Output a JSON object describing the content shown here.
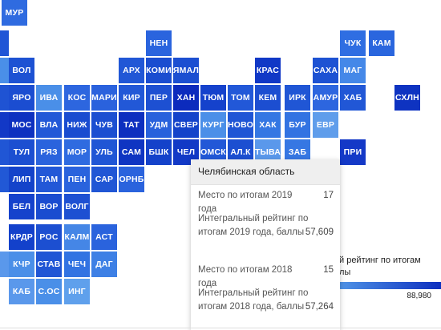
{
  "tiles": [
    {
      "label": "МУР",
      "color": "#2f6be0"
    },
    {
      "label": "",
      "color": "#1f55d6"
    },
    {
      "label": "НЕН",
      "color": "#2a64de"
    },
    {
      "label": "ЧУК",
      "color": "#2f6ee2"
    },
    {
      "label": "КАМ",
      "color": "#2a66de"
    },
    {
      "label": "",
      "color": "#4a8fe8"
    },
    {
      "label": "ВОЛ",
      "color": "#1d52d3"
    },
    {
      "label": "АРХ",
      "color": "#2157d6"
    },
    {
      "label": "КОМИ",
      "color": "#1a4dd0"
    },
    {
      "label": "ЯМАЛ",
      "color": "#1c4fd1"
    },
    {
      "label": "КРАС",
      "color": "#1138c6"
    },
    {
      "label": "САХА",
      "color": "#1d52d3"
    },
    {
      "label": "МАГ",
      "color": "#4588e8"
    },
    {
      "label": "",
      "color": "#1f53d3"
    },
    {
      "label": "ЯРО",
      "color": "#1b4dd1"
    },
    {
      "label": "ИВА",
      "color": "#4a8fe8"
    },
    {
      "label": "КОС",
      "color": "#2d66df"
    },
    {
      "label": "МАРИ",
      "color": "#2a62dd"
    },
    {
      "label": "КИР",
      "color": "#2258d7"
    },
    {
      "label": "ПЕР",
      "color": "#1d50d2"
    },
    {
      "label": "ХАН",
      "color": "#0c2bbd"
    },
    {
      "label": "ТЮМ",
      "color": "#1542cc"
    },
    {
      "label": "ТОМ",
      "color": "#2258d8"
    },
    {
      "label": "КЕМ",
      "color": "#1c4ed1"
    },
    {
      "label": "ИРК",
      "color": "#2056d5"
    },
    {
      "label": "АМУР",
      "color": "#2d66df"
    },
    {
      "label": "ХАБ",
      "color": "#2157d6"
    },
    {
      "label": "СХЛН",
      "color": "#0e33c1"
    },
    {
      "label": "",
      "color": "#1238c6"
    },
    {
      "label": "МОС",
      "color": "#0e31c0"
    },
    {
      "label": "ВЛА",
      "color": "#2258d7"
    },
    {
      "label": "НИЖ",
      "color": "#1a4cd0"
    },
    {
      "label": "ЧУВ",
      "color": "#1c4fd1"
    },
    {
      "label": "ТАТ",
      "color": "#0d2fbf"
    },
    {
      "label": "УДМ",
      "color": "#2861dc"
    },
    {
      "label": "СВЕР",
      "color": "#1443ca"
    },
    {
      "label": "КУРГ",
      "color": "#4b8fe8"
    },
    {
      "label": "НОВО",
      "color": "#1f55d5"
    },
    {
      "label": "ХАК",
      "color": "#3477e3"
    },
    {
      "label": "БУР",
      "color": "#3273e2"
    },
    {
      "label": "ЕВР",
      "color": "#5f9deb"
    },
    {
      "label": "",
      "color": "#2056d5"
    },
    {
      "label": "ТУЛ",
      "color": "#1c4fd1"
    },
    {
      "label": "РЯЗ",
      "color": "#2a63dd"
    },
    {
      "label": "МОР",
      "color": "#2f6be0"
    },
    {
      "label": "УЛЬ",
      "color": "#2056d5"
    },
    {
      "label": "САМ",
      "color": "#0f35c2"
    },
    {
      "label": "БШК",
      "color": "#1442ca"
    },
    {
      "label": "ЧЕЛ",
      "color": "#1239c6"
    },
    {
      "label": "ОМСК",
      "color": "#2258d7"
    },
    {
      "label": "АЛ.К",
      "color": "#1c4fd1"
    },
    {
      "label": "ТЫВА",
      "color": "#5a98eb"
    },
    {
      "label": "ЗАБ",
      "color": "#3677e3"
    },
    {
      "label": "ПРИ",
      "color": "#1439c7"
    },
    {
      "label": "",
      "color": "#2158d6"
    },
    {
      "label": "ЛИП",
      "color": "#1443ca"
    },
    {
      "label": "ТАМ",
      "color": "#2258d7"
    },
    {
      "label": "ПЕН",
      "color": "#2a63dd"
    },
    {
      "label": "САР",
      "color": "#2056d5"
    },
    {
      "label": "ОРНБ",
      "color": "#2a63dd"
    },
    {
      "label": "БЕЛ",
      "color": "#1542cc"
    },
    {
      "label": "ВОР",
      "color": "#1a4cd0"
    },
    {
      "label": "ВОЛГ",
      "color": "#1d50d2"
    },
    {
      "label": "КРДР",
      "color": "#1341cb"
    },
    {
      "label": "РОС",
      "color": "#1c4fd1"
    },
    {
      "label": "КАЛМ",
      "color": "#4586e6"
    },
    {
      "label": "АСТ",
      "color": "#2a63dd"
    },
    {
      "label": "",
      "color": "#5a98eb"
    },
    {
      "label": "КЧР",
      "color": "#4a8fe8"
    },
    {
      "label": "СТАВ",
      "color": "#2056d5"
    },
    {
      "label": "ЧЕЧ",
      "color": "#3273e2"
    },
    {
      "label": "ДАГ",
      "color": "#3e80e5"
    },
    {
      "label": "КАБ",
      "color": "#5a98eb"
    },
    {
      "label": "С.ОС",
      "color": "#4a8fe8"
    },
    {
      "label": "ИНГ",
      "color": "#5fa0ec"
    }
  ],
  "tooltip": {
    "region": "Челябинская область",
    "rows": [
      {
        "label": "Место по итогам 2019 года",
        "value": "17"
      },
      {
        "label": "Интегральный рейтинг по итогам 2019 года, баллы",
        "value": "57,609"
      },
      {
        "label": "Место по итогам 2018 года",
        "value": "15"
      },
      {
        "label": "Интегральный рейтинг по итогам 2018 года, баллы",
        "value": "57,264"
      }
    ]
  },
  "legend": {
    "title": "й рейтинг по итогам",
    "subtitle": "лы",
    "max": "88,980"
  }
}
